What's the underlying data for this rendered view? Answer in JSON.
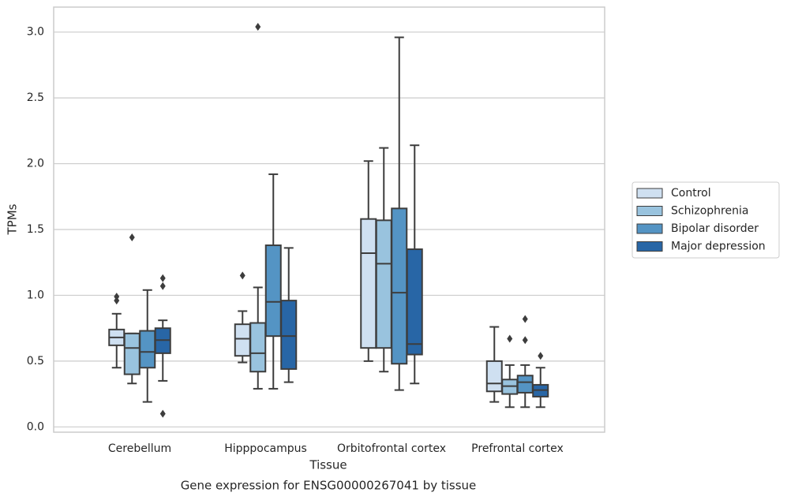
{
  "chart_data": {
    "type": "box",
    "title": "Gene expression for ENSG00000267041 by tissue",
    "xlabel": "Tissue",
    "ylabel": "TPMs",
    "categories": [
      "Cerebellum",
      "Hipppocampus",
      "Orbitofrontal cortex",
      "Prefrontal cortex"
    ],
    "ylim": [
      -0.04,
      3.19
    ],
    "yticks": [
      {
        "value": 0,
        "label": "0.0"
      },
      0.5,
      {
        "value": 1,
        "label": "1.0"
      },
      1.5,
      {
        "value": 2,
        "label": "2.0"
      },
      2.5,
      {
        "value": 3,
        "label": "3.0"
      }
    ],
    "grid": true,
    "legend": "right",
    "series": [
      {
        "name": "Control",
        "color": "#cfe0f1",
        "values": [
          {
            "min": 0.45,
            "q1": 0.62,
            "median": 0.68,
            "q3": 0.74,
            "max": 0.86,
            "outliers": [
              0.99,
              0.96
            ]
          },
          {
            "min": 0.49,
            "q1": 0.54,
            "median": 0.67,
            "q3": 0.78,
            "max": 0.88,
            "outliers": [
              1.15
            ]
          },
          {
            "min": 0.5,
            "q1": 0.6,
            "median": 1.32,
            "q3": 1.58,
            "max": 2.02,
            "outliers": []
          },
          {
            "min": 0.19,
            "q1": 0.27,
            "median": 0.33,
            "q3": 0.5,
            "max": 0.76,
            "outliers": []
          }
        ]
      },
      {
        "name": "Schizophrenia",
        "color": "#99c3de",
        "values": [
          {
            "min": 0.33,
            "q1": 0.4,
            "median": 0.6,
            "q3": 0.71,
            "max": 0.71,
            "outliers": [
              1.44
            ]
          },
          {
            "min": 0.29,
            "q1": 0.42,
            "median": 0.56,
            "q3": 0.79,
            "max": 1.06,
            "outliers": [
              3.04
            ]
          },
          {
            "min": 0.42,
            "q1": 0.6,
            "median": 1.24,
            "q3": 1.57,
            "max": 2.12,
            "outliers": []
          },
          {
            "min": 0.15,
            "q1": 0.25,
            "median": 0.31,
            "q3": 0.36,
            "max": 0.47,
            "outliers": [
              0.67
            ]
          }
        ]
      },
      {
        "name": "Bipolar disorder",
        "color": "#5494c4",
        "values": [
          {
            "min": 0.19,
            "q1": 0.45,
            "median": 0.57,
            "q3": 0.73,
            "max": 1.04,
            "outliers": []
          },
          {
            "min": 0.29,
            "q1": 0.69,
            "median": 0.95,
            "q3": 1.38,
            "max": 1.92,
            "outliers": []
          },
          {
            "min": 0.28,
            "q1": 0.48,
            "median": 1.02,
            "q3": 1.66,
            "max": 2.96,
            "outliers": []
          },
          {
            "min": 0.15,
            "q1": 0.26,
            "median": 0.34,
            "q3": 0.39,
            "max": 0.47,
            "outliers": [
              0.82,
              0.66
            ]
          }
        ]
      },
      {
        "name": "Major depression",
        "color": "#2866a6",
        "values": [
          {
            "min": 0.35,
            "q1": 0.56,
            "median": 0.66,
            "q3": 0.75,
            "max": 0.81,
            "outliers": [
              1.13,
              1.07,
              0.1
            ]
          },
          {
            "min": 0.34,
            "q1": 0.44,
            "median": 0.69,
            "q3": 0.96,
            "max": 1.36,
            "outliers": []
          },
          {
            "min": 0.33,
            "q1": 0.55,
            "median": 0.63,
            "q3": 1.35,
            "max": 2.14,
            "outliers": []
          },
          {
            "min": 0.15,
            "q1": 0.23,
            "median": 0.28,
            "q3": 0.32,
            "max": 0.45,
            "outliers": [
              0.54
            ]
          }
        ]
      }
    ]
  }
}
